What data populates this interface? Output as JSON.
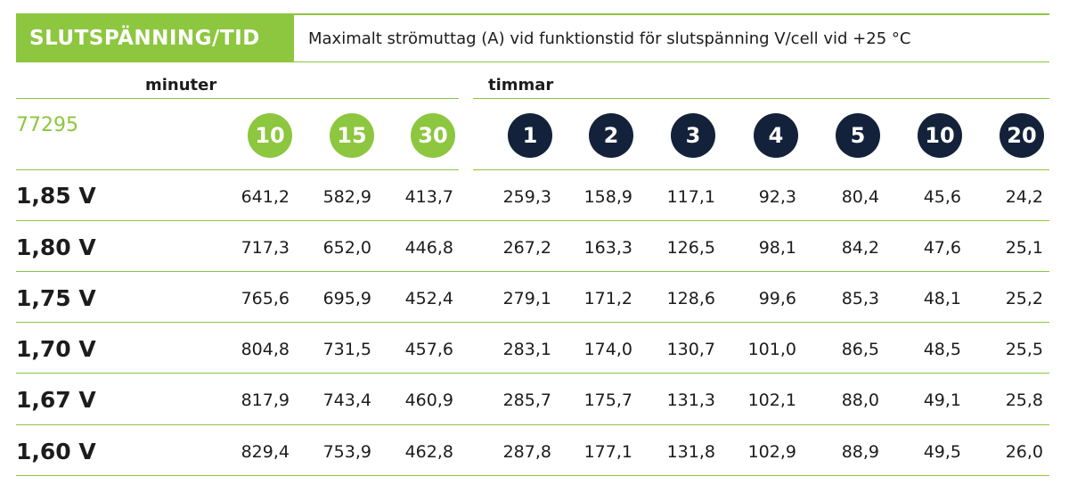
{
  "header": {
    "title": "SLUTSPÄNNING/TID",
    "subtitle": "Maximalt strömuttag (A) vid funktionstid för slutspänning V/cell vid +25 °C"
  },
  "groups": {
    "minutes_label": "minuter",
    "hours_label": "timmar"
  },
  "model": "77295",
  "minute_columns": [
    "10",
    "15",
    "30"
  ],
  "hour_columns": [
    "1",
    "2",
    "3",
    "4",
    "5",
    "10",
    "20"
  ],
  "rows": [
    {
      "voltage": "1,85 V",
      "values": [
        "641,2",
        "582,9",
        "413,7",
        "259,3",
        "158,9",
        "117,1",
        "92,3",
        "80,4",
        "45,6",
        "24,2"
      ]
    },
    {
      "voltage": "1,80 V",
      "values": [
        "717,3",
        "652,0",
        "446,8",
        "267,2",
        "163,3",
        "126,5",
        "98,1",
        "84,2",
        "47,6",
        "25,1"
      ]
    },
    {
      "voltage": "1,75 V",
      "values": [
        "765,6",
        "695,9",
        "452,4",
        "279,1",
        "171,2",
        "128,6",
        "99,6",
        "85,3",
        "48,1",
        "25,2"
      ]
    },
    {
      "voltage": "1,70 V",
      "values": [
        "804,8",
        "731,5",
        "457,6",
        "283,1",
        "174,0",
        "130,7",
        "101,0",
        "86,5",
        "48,5",
        "25,5"
      ]
    },
    {
      "voltage": "1,67 V",
      "values": [
        "817,9",
        "743,4",
        "460,9",
        "285,7",
        "175,7",
        "131,3",
        "102,1",
        "88,0",
        "49,1",
        "25,8"
      ]
    },
    {
      "voltage": "1,60 V",
      "values": [
        "829,4",
        "753,9",
        "462,8",
        "287,8",
        "177,1",
        "131,8",
        "102,9",
        "88,9",
        "49,5",
        "26,0"
      ]
    }
  ],
  "colors": {
    "accent_green": "#8dc63f",
    "badge_navy": "#13223a",
    "text": "#1c1c1c"
  }
}
